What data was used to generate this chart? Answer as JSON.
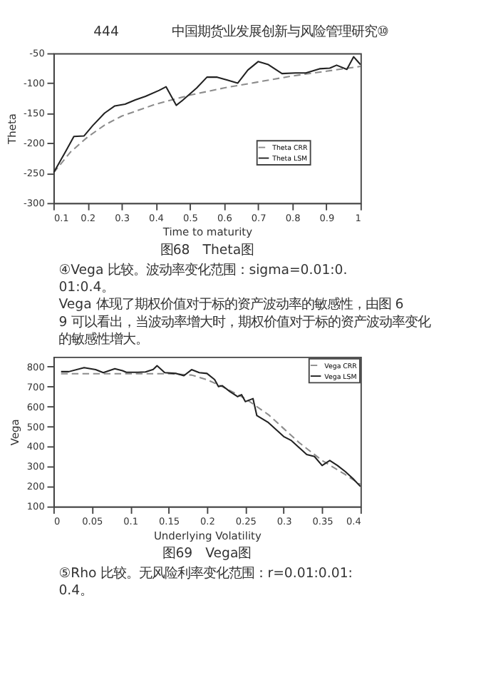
{
  "chart_data": [
    {
      "type": "line",
      "title": "图68　Theta图",
      "xlabel": "Time to maturity",
      "ylabel": "Theta",
      "xlim": [
        0.1,
        1
      ],
      "xticks": [
        0.1,
        0.2,
        0.3,
        0.4,
        0.5,
        0.6,
        0.7,
        0.8,
        0.9,
        1
      ],
      "ylim": [
        -300,
        -50
      ],
      "yticks": [
        -300,
        -250,
        -200,
        -150,
        -100,
        -50
      ],
      "grid": false,
      "legend": "right",
      "marker": "none",
      "annotations": [
        "444",
        "中国期货业发展创新与风险管理研究⑩",
        "④Vega 比较。波动率变化范围：sigma=0.01:0.01:0.4。",
        "Vega 体现了期权价值对于标的资产波动率的敏感性，由图 69 可以看出，当波动率增大时，期权价值对于标的资产波动率变化的敏感性增大。"
      ],
      "series": [
        {
          "name": "Theta CRR",
          "color": "#8c8c8c",
          "line_style": "dashed",
          "x": [
            0.1,
            0.15,
            0.2,
            0.25,
            0.3,
            0.4,
            0.5,
            0.6,
            0.7,
            0.8,
            0.9,
            1.0
          ],
          "values": [
            -250,
            -215,
            -190,
            -170,
            -155,
            -135,
            -120,
            -108,
            -98,
            -88,
            -80,
            -72
          ]
        },
        {
          "name": "Theta LSM",
          "color": "#222222",
          "line_style": "solid",
          "x": [
            0.1,
            0.135,
            0.16,
            0.19,
            0.215,
            0.25,
            0.28,
            0.31,
            0.34,
            0.37,
            0.41,
            0.43,
            0.46,
            0.48,
            0.52,
            0.55,
            0.58,
            0.61,
            0.64,
            0.67,
            0.7,
            0.73,
            0.77,
            0.81,
            0.84,
            0.88,
            0.91,
            0.93,
            0.96,
            0.98,
            1.0
          ],
          "values": [
            -250,
            -215,
            -189,
            -188,
            -171,
            -150,
            -138,
            -135,
            -128,
            -122,
            -112,
            -106,
            -137,
            -128,
            -108,
            -90,
            -90,
            -95,
            -100,
            -78,
            -64,
            -69,
            -84,
            -83,
            -83,
            -76,
            -75,
            -70,
            -77,
            -56,
            -69
          ]
        }
      ]
    },
    {
      "type": "line",
      "title": "图69　Vega图",
      "xlabel": "Underlying Volatility",
      "ylabel": "Vega",
      "xlim": [
        0,
        0.4
      ],
      "xticks": [
        0,
        0.05,
        0.1,
        0.15,
        0.2,
        0.25,
        0.3,
        0.35,
        0.4
      ],
      "ylim": [
        100,
        850
      ],
      "yticks": [
        100,
        200,
        300,
        400,
        500,
        600,
        700,
        800
      ],
      "grid": false,
      "legend": "top right",
      "marker": "none",
      "annotations": [
        "⑤Rho 比较。无风险利率变化范围：r=0.01:0.01:0.4。"
      ],
      "series": [
        {
          "name": "Vega CRR",
          "color": "#8c8c8c",
          "line_style": "dashed",
          "x": [
            0.01,
            0.1,
            0.15,
            0.18,
            0.2,
            0.22,
            0.25,
            0.28,
            0.3,
            0.32,
            0.35,
            0.38,
            0.4
          ],
          "values": [
            765,
            765,
            765,
            758,
            735,
            700,
            640,
            560,
            490,
            420,
            330,
            260,
            210
          ]
        },
        {
          "name": "Vega LSM",
          "color": "#222222",
          "line_style": "solid",
          "x": [
            0.01,
            0.02,
            0.04,
            0.055,
            0.065,
            0.08,
            0.09,
            0.095,
            0.11,
            0.12,
            0.13,
            0.135,
            0.145,
            0.16,
            0.17,
            0.18,
            0.19,
            0.2,
            0.21,
            0.215,
            0.22,
            0.23,
            0.24,
            0.245,
            0.25,
            0.26,
            0.265,
            0.28,
            0.3,
            0.31,
            0.32,
            0.33,
            0.34,
            0.35,
            0.36,
            0.37,
            0.38,
            0.39,
            0.4
          ],
          "values": [
            775,
            775,
            795,
            785,
            770,
            790,
            780,
            772,
            772,
            774,
            786,
            805,
            770,
            766,
            755,
            785,
            770,
            766,
            735,
            700,
            705,
            675,
            650,
            660,
            625,
            640,
            555,
            520,
            450,
            430,
            395,
            360,
            350,
            305,
            330,
            305,
            275,
            240,
            200
          ]
        }
      ]
    }
  ]
}
